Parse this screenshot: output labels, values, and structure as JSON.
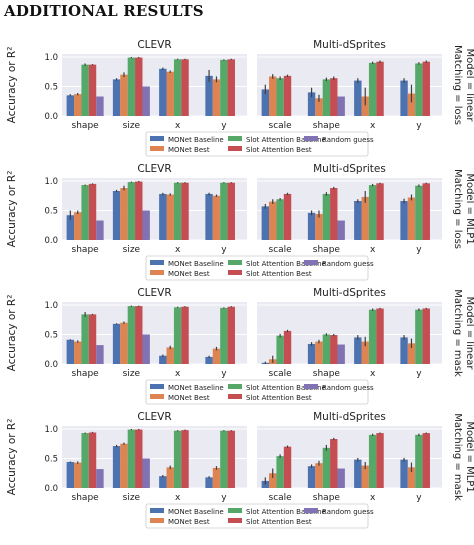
{
  "heading": "ADDITIONAL RESULTS",
  "colors": {
    "monet_baseline": "#4c72b0",
    "monet_best": "#dd8452",
    "slot_baseline": "#55a868",
    "slot_best": "#c44e52",
    "random_guess": "#8172b3",
    "panel_bg": "#eaeaf2",
    "grid": "#ffffff"
  },
  "legend": [
    "MONet Baseline",
    "MONet Best",
    "Slot Attention Baseline",
    "Slot Attention Best",
    "Random guess"
  ],
  "ylabel": "Accuracy or R²",
  "rows": [
    {
      "row_label": [
        "Matching = loss",
        "Model = linear"
      ],
      "clevr": {
        "title": "CLEVR",
        "categories": [
          "shape",
          "size",
          "x",
          "y"
        ],
        "series": [
          {
            "name": "MONet Baseline",
            "values": [
              0.35,
              0.62,
              0.8,
              0.68
            ],
            "err": [
              0.02,
              0.02,
              0.02,
              0.1
            ]
          },
          {
            "name": "MONet Best",
            "values": [
              0.37,
              0.7,
              0.75,
              0.62
            ],
            "err": [
              0.02,
              0.04,
              0.02,
              0.05
            ]
          },
          {
            "name": "Slot Attention Baseline",
            "values": [
              0.87,
              0.99,
              0.96,
              0.95
            ],
            "err": [
              0.02,
              0.01,
              0.01,
              0.01
            ]
          },
          {
            "name": "Slot Attention Best",
            "values": [
              0.87,
              0.99,
              0.96,
              0.96
            ],
            "err": [
              0.01,
              0.01,
              0.01,
              0.01
            ]
          },
          {
            "name": "Random guess",
            "values": [
              0.33,
              0.5,
              null,
              null
            ],
            "err": [
              0,
              0,
              0,
              0
            ]
          }
        ]
      },
      "dsprites": {
        "title": "Multi-dSprites",
        "categories": [
          "scale",
          "shape",
          "x",
          "y"
        ],
        "series": [
          {
            "name": "MONet Baseline",
            "values": [
              0.45,
              0.4,
              0.6,
              0.6
            ],
            "err": [
              0.08,
              0.08,
              0.04,
              0.04
            ]
          },
          {
            "name": "MONet Best",
            "values": [
              0.67,
              0.3,
              0.33,
              0.38
            ],
            "err": [
              0.04,
              0.06,
              0.15,
              0.15
            ]
          },
          {
            "name": "Slot Attention Baseline",
            "values": [
              0.64,
              0.62,
              0.9,
              0.89
            ],
            "err": [
              0.03,
              0.03,
              0.02,
              0.02
            ]
          },
          {
            "name": "Slot Attention Best",
            "values": [
              0.68,
              0.64,
              0.92,
              0.92
            ],
            "err": [
              0.02,
              0.03,
              0.02,
              0.02
            ]
          },
          {
            "name": "Random guess",
            "values": [
              null,
              0.33,
              null,
              null
            ],
            "err": [
              0,
              0,
              0,
              0
            ]
          }
        ]
      }
    },
    {
      "row_label": [
        "Matching = loss",
        "Model = MLP1"
      ],
      "clevr": {
        "title": "CLEVR",
        "categories": [
          "shape",
          "size",
          "x",
          "y"
        ],
        "series": [
          {
            "name": "MONet Baseline",
            "values": [
              0.42,
              0.83,
              0.78,
              0.78
            ],
            "err": [
              0.08,
              0.02,
              0.02,
              0.02
            ]
          },
          {
            "name": "MONet Best",
            "values": [
              0.47,
              0.88,
              0.77,
              0.75
            ],
            "err": [
              0.03,
              0.04,
              0.02,
              0.02
            ]
          },
          {
            "name": "Slot Attention Baseline",
            "values": [
              0.93,
              0.98,
              0.97,
              0.97
            ],
            "err": [
              0.01,
              0.01,
              0.01,
              0.01
            ]
          },
          {
            "name": "Slot Attention Best",
            "values": [
              0.95,
              0.99,
              0.97,
              0.97
            ],
            "err": [
              0.01,
              0.01,
              0.01,
              0.01
            ]
          },
          {
            "name": "Random guess",
            "values": [
              0.33,
              0.5,
              null,
              null
            ],
            "err": [
              0,
              0,
              0,
              0
            ]
          }
        ]
      },
      "dsprites": {
        "title": "Multi-dSprites",
        "categories": [
          "scale",
          "shape",
          "x",
          "y"
        ],
        "series": [
          {
            "name": "MONet Baseline",
            "values": [
              0.57,
              0.46,
              0.66,
              0.66
            ],
            "err": [
              0.04,
              0.04,
              0.03,
              0.04
            ]
          },
          {
            "name": "MONet Best",
            "values": [
              0.65,
              0.44,
              0.73,
              0.72
            ],
            "err": [
              0.04,
              0.06,
              0.1,
              0.05
            ]
          },
          {
            "name": "Slot Attention Baseline",
            "values": [
              0.69,
              0.78,
              0.93,
              0.92
            ],
            "err": [
              0.02,
              0.03,
              0.02,
              0.02
            ]
          },
          {
            "name": "Slot Attention Best",
            "values": [
              0.78,
              0.88,
              0.96,
              0.96
            ],
            "err": [
              0.02,
              0.02,
              0.01,
              0.01
            ]
          },
          {
            "name": "Random guess",
            "values": [
              null,
              0.33,
              null,
              null
            ],
            "err": [
              0,
              0,
              0,
              0
            ]
          }
        ]
      }
    },
    {
      "row_label": [
        "Matching = mask",
        "Model = linear"
      ],
      "clevr": {
        "title": "CLEVR",
        "categories": [
          "shape",
          "size",
          "x",
          "y"
        ],
        "series": [
          {
            "name": "MONet Baseline",
            "values": [
              0.41,
              0.68,
              0.14,
              0.12
            ],
            "err": [
              0.01,
              0.01,
              0.02,
              0.02
            ]
          },
          {
            "name": "MONet Best",
            "values": [
              0.38,
              0.7,
              0.28,
              0.26
            ],
            "err": [
              0.02,
              0.02,
              0.03,
              0.03
            ]
          },
          {
            "name": "Slot Attention Baseline",
            "values": [
              0.84,
              0.98,
              0.96,
              0.95
            ],
            "err": [
              0.04,
              0.01,
              0.01,
              0.01
            ]
          },
          {
            "name": "Slot Attention Best",
            "values": [
              0.84,
              0.98,
              0.97,
              0.97
            ],
            "err": [
              0.01,
              0.01,
              0.01,
              0.01
            ]
          },
          {
            "name": "Random guess",
            "values": [
              0.32,
              0.5,
              null,
              null
            ],
            "err": [
              0,
              0,
              0,
              0
            ]
          }
        ]
      },
      "dsprites": {
        "title": "Multi-dSprites",
        "categories": [
          "scale",
          "shape",
          "x",
          "y"
        ],
        "series": [
          {
            "name": "MONet Baseline",
            "values": [
              0.02,
              0.34,
              0.45,
              0.45
            ],
            "err": [
              0.02,
              0.03,
              0.04,
              0.04
            ]
          },
          {
            "name": "MONet Best",
            "values": [
              0.08,
              0.38,
              0.38,
              0.35
            ],
            "err": [
              0.06,
              0.03,
              0.08,
              0.08
            ]
          },
          {
            "name": "Slot Attention Baseline",
            "values": [
              0.48,
              0.5,
              0.92,
              0.92
            ],
            "err": [
              0.03,
              0.02,
              0.02,
              0.02
            ]
          },
          {
            "name": "Slot Attention Best",
            "values": [
              0.56,
              0.49,
              0.94,
              0.94
            ],
            "err": [
              0.02,
              0.02,
              0.01,
              0.01
            ]
          },
          {
            "name": "Random guess",
            "values": [
              null,
              0.33,
              null,
              null
            ],
            "err": [
              0,
              0,
              0,
              0
            ]
          }
        ]
      }
    },
    {
      "row_label": [
        "Matching = mask",
        "Model = MLP1"
      ],
      "clevr": {
        "title": "CLEVR",
        "categories": [
          "shape",
          "size",
          "x",
          "y"
        ],
        "series": [
          {
            "name": "MONet Baseline",
            "values": [
              0.44,
              0.71,
              0.2,
              0.18
            ],
            "err": [
              0.01,
              0.02,
              0.02,
              0.02
            ]
          },
          {
            "name": "MONet Best",
            "values": [
              0.43,
              0.75,
              0.35,
              0.34
            ],
            "err": [
              0.02,
              0.02,
              0.03,
              0.03
            ]
          },
          {
            "name": "Slot Attention Baseline",
            "values": [
              0.93,
              0.99,
              0.97,
              0.97
            ],
            "err": [
              0.01,
              0.01,
              0.01,
              0.01
            ]
          },
          {
            "name": "Slot Attention Best",
            "values": [
              0.94,
              0.99,
              0.98,
              0.97
            ],
            "err": [
              0.01,
              0.01,
              0.01,
              0.01
            ]
          },
          {
            "name": "Random guess",
            "values": [
              0.32,
              0.5,
              null,
              null
            ],
            "err": [
              0,
              0,
              0,
              0
            ]
          }
        ]
      },
      "dsprites": {
        "title": "Multi-dSprites",
        "categories": [
          "scale",
          "shape",
          "x",
          "y"
        ],
        "series": [
          {
            "name": "MONet Baseline",
            "values": [
              0.12,
              0.37,
              0.48,
              0.48
            ],
            "err": [
              0.06,
              0.03,
              0.03,
              0.03
            ]
          },
          {
            "name": "MONet Best",
            "values": [
              0.25,
              0.42,
              0.38,
              0.35
            ],
            "err": [
              0.08,
              0.04,
              0.06,
              0.08
            ]
          },
          {
            "name": "Slot Attention Baseline",
            "values": [
              0.54,
              0.68,
              0.9,
              0.9
            ],
            "err": [
              0.03,
              0.05,
              0.02,
              0.02
            ]
          },
          {
            "name": "Slot Attention Best",
            "values": [
              0.7,
              0.83,
              0.93,
              0.93
            ],
            "err": [
              0.02,
              0.02,
              0.01,
              0.01
            ]
          },
          {
            "name": "Random guess",
            "values": [
              null,
              0.33,
              null,
              null
            ],
            "err": [
              0,
              0,
              0,
              0
            ]
          }
        ]
      }
    }
  ],
  "chart_data": {
    "type": "bar",
    "ylim": [
      0,
      1.05
    ],
    "yticks": [
      "0.0",
      "0.5",
      "1.0"
    ],
    "grid": true,
    "legend_placement": "bottom-center"
  }
}
